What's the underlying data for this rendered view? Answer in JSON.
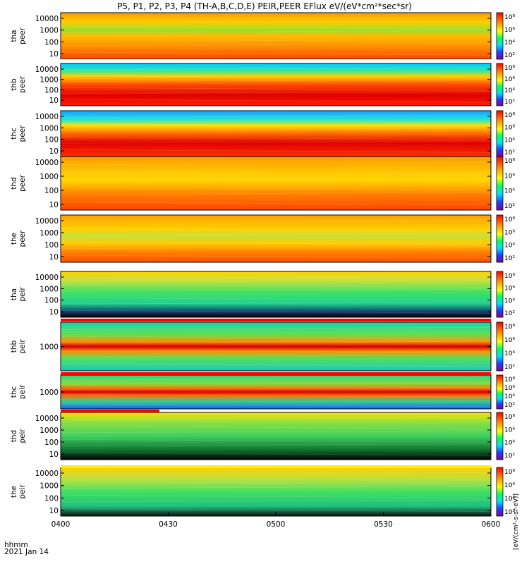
{
  "title": "P5, P1, P2, P3, P4 (TH-A,B,C,D,E) PEIR,PEER EFlux eV/(eV*cm²*sec*sr)",
  "x_axis": {
    "label_line1": "hhmm",
    "label_line2": "2021 Jan 14",
    "ticks": [
      "0400",
      "0430",
      "0500",
      "0530",
      "0600"
    ]
  },
  "colorbar_unit": "[eV/(cm²-s-sr-eV)]",
  "colorbar_ticks": [
    "10⁸",
    "10⁶",
    "10⁴",
    "10²"
  ],
  "chart_data": {
    "type": "heatmap",
    "x_range": [
      "0400",
      "0600"
    ],
    "colormap": "rainbow (blue-cyan-green-yellow-red)",
    "panels": [
      {
        "probe": "tha",
        "species": "peer",
        "label": [
          "tha",
          "peer"
        ],
        "y_ticks": [
          "10000",
          "1000",
          "100",
          "10"
        ],
        "scale": "log"
      },
      {
        "probe": "thb",
        "species": "peer",
        "label": [
          "thb",
          "peer"
        ],
        "y_ticks": [
          "10000",
          "1000",
          "100",
          "10"
        ],
        "scale": "log"
      },
      {
        "probe": "thc",
        "species": "peer",
        "label": [
          "thc",
          "peer"
        ],
        "y_ticks": [
          "10000",
          "1000",
          "100",
          "10"
        ],
        "scale": "log"
      },
      {
        "probe": "thd",
        "species": "peer",
        "label": [
          "thd",
          "peer"
        ],
        "y_ticks": [
          "10000",
          "1000",
          "100",
          "10"
        ],
        "scale": "log"
      },
      {
        "probe": "the",
        "species": "peer",
        "label": [
          "the",
          "peer"
        ],
        "y_ticks": [
          "10000",
          "1000",
          "100",
          "10"
        ],
        "scale": "log"
      },
      {
        "probe": "tha",
        "species": "peir",
        "label": [
          "tha",
          "peir"
        ],
        "y_ticks": [
          "10000",
          "1000",
          "100",
          "10"
        ],
        "scale": "log"
      },
      {
        "probe": "thb",
        "species": "peir",
        "label": [
          "thb",
          "peir"
        ],
        "y_ticks": [
          "1000"
        ],
        "scale": "log"
      },
      {
        "probe": "thc",
        "species": "peir",
        "label": [
          "thc",
          "peir"
        ],
        "y_ticks": [
          "1000"
        ],
        "scale": "log"
      },
      {
        "probe": "thd",
        "species": "peir",
        "label": [
          "thd",
          "peir"
        ],
        "y_ticks": [
          "10000",
          "1000",
          "100",
          "10"
        ],
        "scale": "log"
      },
      {
        "probe": "the",
        "species": "peir",
        "label": [
          "the",
          "peir"
        ],
        "y_ticks": [
          "10000",
          "1000",
          "100",
          "10"
        ],
        "scale": "log"
      }
    ]
  }
}
